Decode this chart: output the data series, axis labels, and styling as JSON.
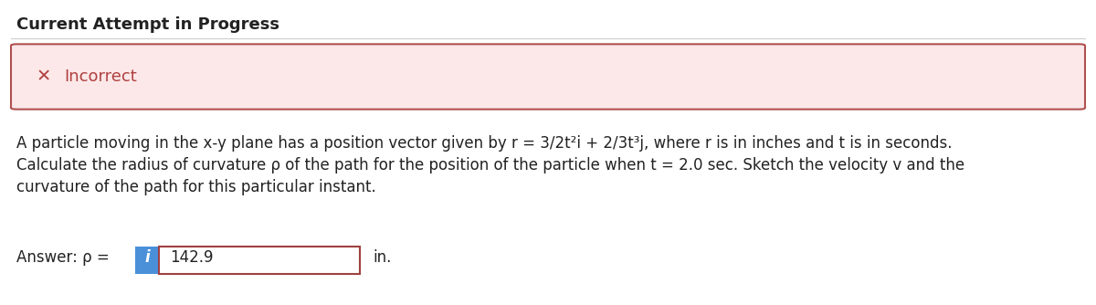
{
  "title": "Current Attempt in Progress",
  "title_fontsize": 13,
  "title_fontweight": "bold",
  "title_color": "#222222",
  "incorrect_box_bg": "#fce8e8",
  "incorrect_box_border": "#b05050",
  "incorrect_label": "Incorrect",
  "incorrect_label_color": "#b04040",
  "x_mark_color": "#b04040",
  "problem_text_line1": "A particle moving in the x-y plane has a position vector given by r = 3/2t²i + 2/3t³j, where r is in inches and t is in seconds.",
  "problem_text_line2": "Calculate the radius of curvature ρ of the path for the position of the particle when t = 2.0 sec. Sketch the velocity v and the",
  "problem_text_line3": "curvature of the path for this particular instant.",
  "answer_prefix": "Answer: ρ = ",
  "answer_value": "142.9",
  "answer_suffix": "in.",
  "answer_box_border": "#a04040",
  "answer_box_bg": "#ffffff",
  "info_button_bg": "#4a90d9",
  "info_button_color": "#ffffff",
  "info_button_label": "i",
  "bg_color": "#ffffff",
  "text_fontsize": 12,
  "answer_fontsize": 12,
  "divider_color": "#cccccc"
}
